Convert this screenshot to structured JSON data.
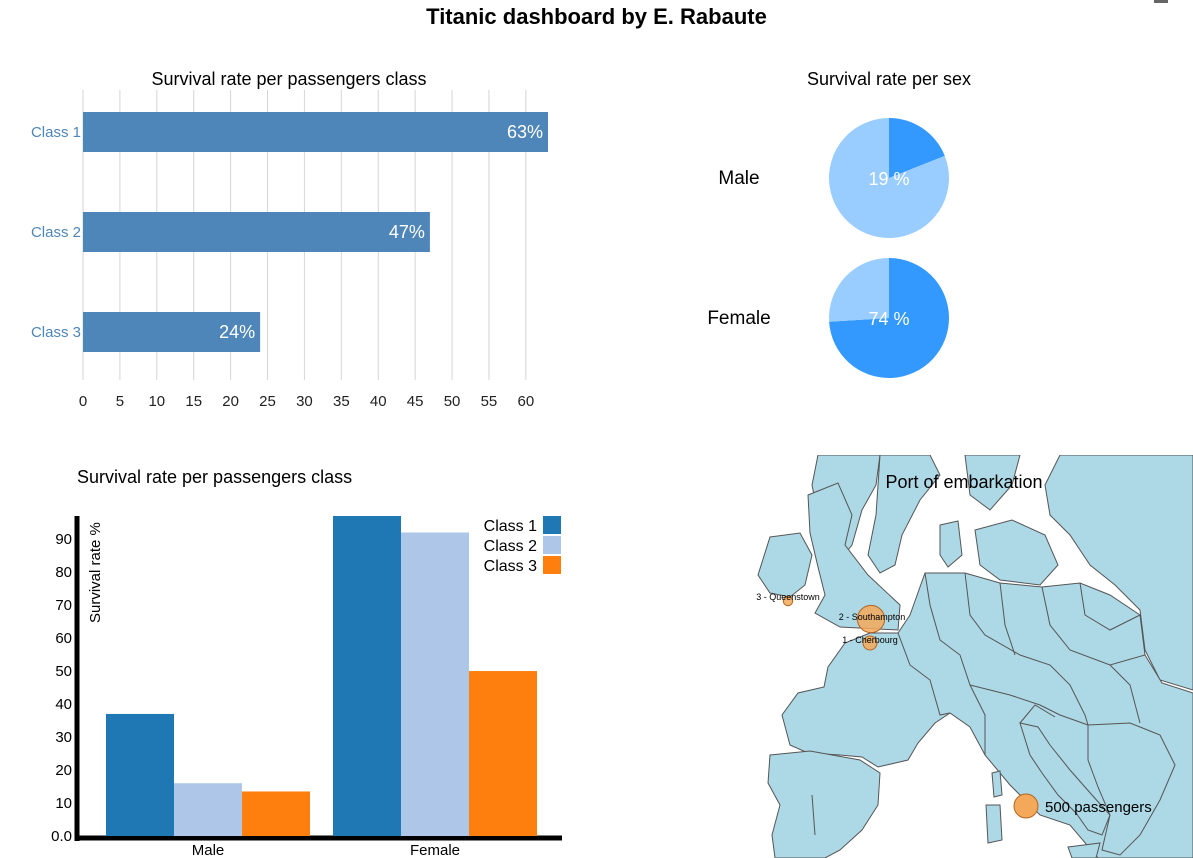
{
  "dashboard": {
    "title": "Titanic dashboard by E. Rabaute"
  },
  "chart_data": [
    {
      "type": "bar",
      "orientation": "horizontal",
      "title": "Survival rate per passengers class",
      "categories": [
        "Class 1",
        "Class 2",
        "Class 3"
      ],
      "values": [
        63,
        47,
        24
      ],
      "value_labels": [
        "63%",
        "47%",
        "24%"
      ],
      "xlim": [
        0,
        63
      ],
      "xticks": [
        "0",
        "5",
        "10",
        "15",
        "20",
        "25",
        "30",
        "35",
        "40",
        "45",
        "50",
        "55",
        "60"
      ],
      "grid": true,
      "bar_color": "#4f86b9"
    },
    {
      "type": "pie",
      "title": "Survival rate per sex",
      "pies": [
        {
          "label": "Male",
          "survived": 19,
          "value_label": "19 %"
        },
        {
          "label": "Female",
          "survived": 74,
          "value_label": "74 %"
        }
      ],
      "colors": {
        "survived": "#3399ff",
        "rest": "#99ccff"
      }
    },
    {
      "type": "bar",
      "orientation": "vertical",
      "title": "Survival rate per passengers class",
      "ylabel": "Survival rate %",
      "categories": [
        "Male",
        "Female"
      ],
      "series": [
        {
          "name": "Class 1",
          "values": [
            37,
            97
          ],
          "color": "#1f77b4"
        },
        {
          "name": "Class 2",
          "values": [
            16,
            92
          ],
          "color": "#aec7e8"
        },
        {
          "name": "Class 3",
          "values": [
            13.5,
            50
          ],
          "color": "#ff7f0e"
        }
      ],
      "ylim": [
        0,
        97
      ],
      "yticks": [
        "0.0",
        "10",
        "20",
        "30",
        "40",
        "50",
        "60",
        "70",
        "80",
        "90"
      ],
      "legend": "top-right"
    },
    {
      "type": "map",
      "title": "Port of embarkation",
      "ports": [
        {
          "label": "3 - Queenstown",
          "passengers": 77
        },
        {
          "label": "2 - Southampton",
          "passengers": 644
        },
        {
          "label": "1 - Cherbourg",
          "passengers": 168
        }
      ],
      "legend_label": "500 passengers",
      "legend_passengers": 500,
      "colors": {
        "land": "#add8e6",
        "border": "#555555",
        "bubble": "#f4a95a",
        "bubble_stroke": "#b5651d"
      }
    }
  ]
}
